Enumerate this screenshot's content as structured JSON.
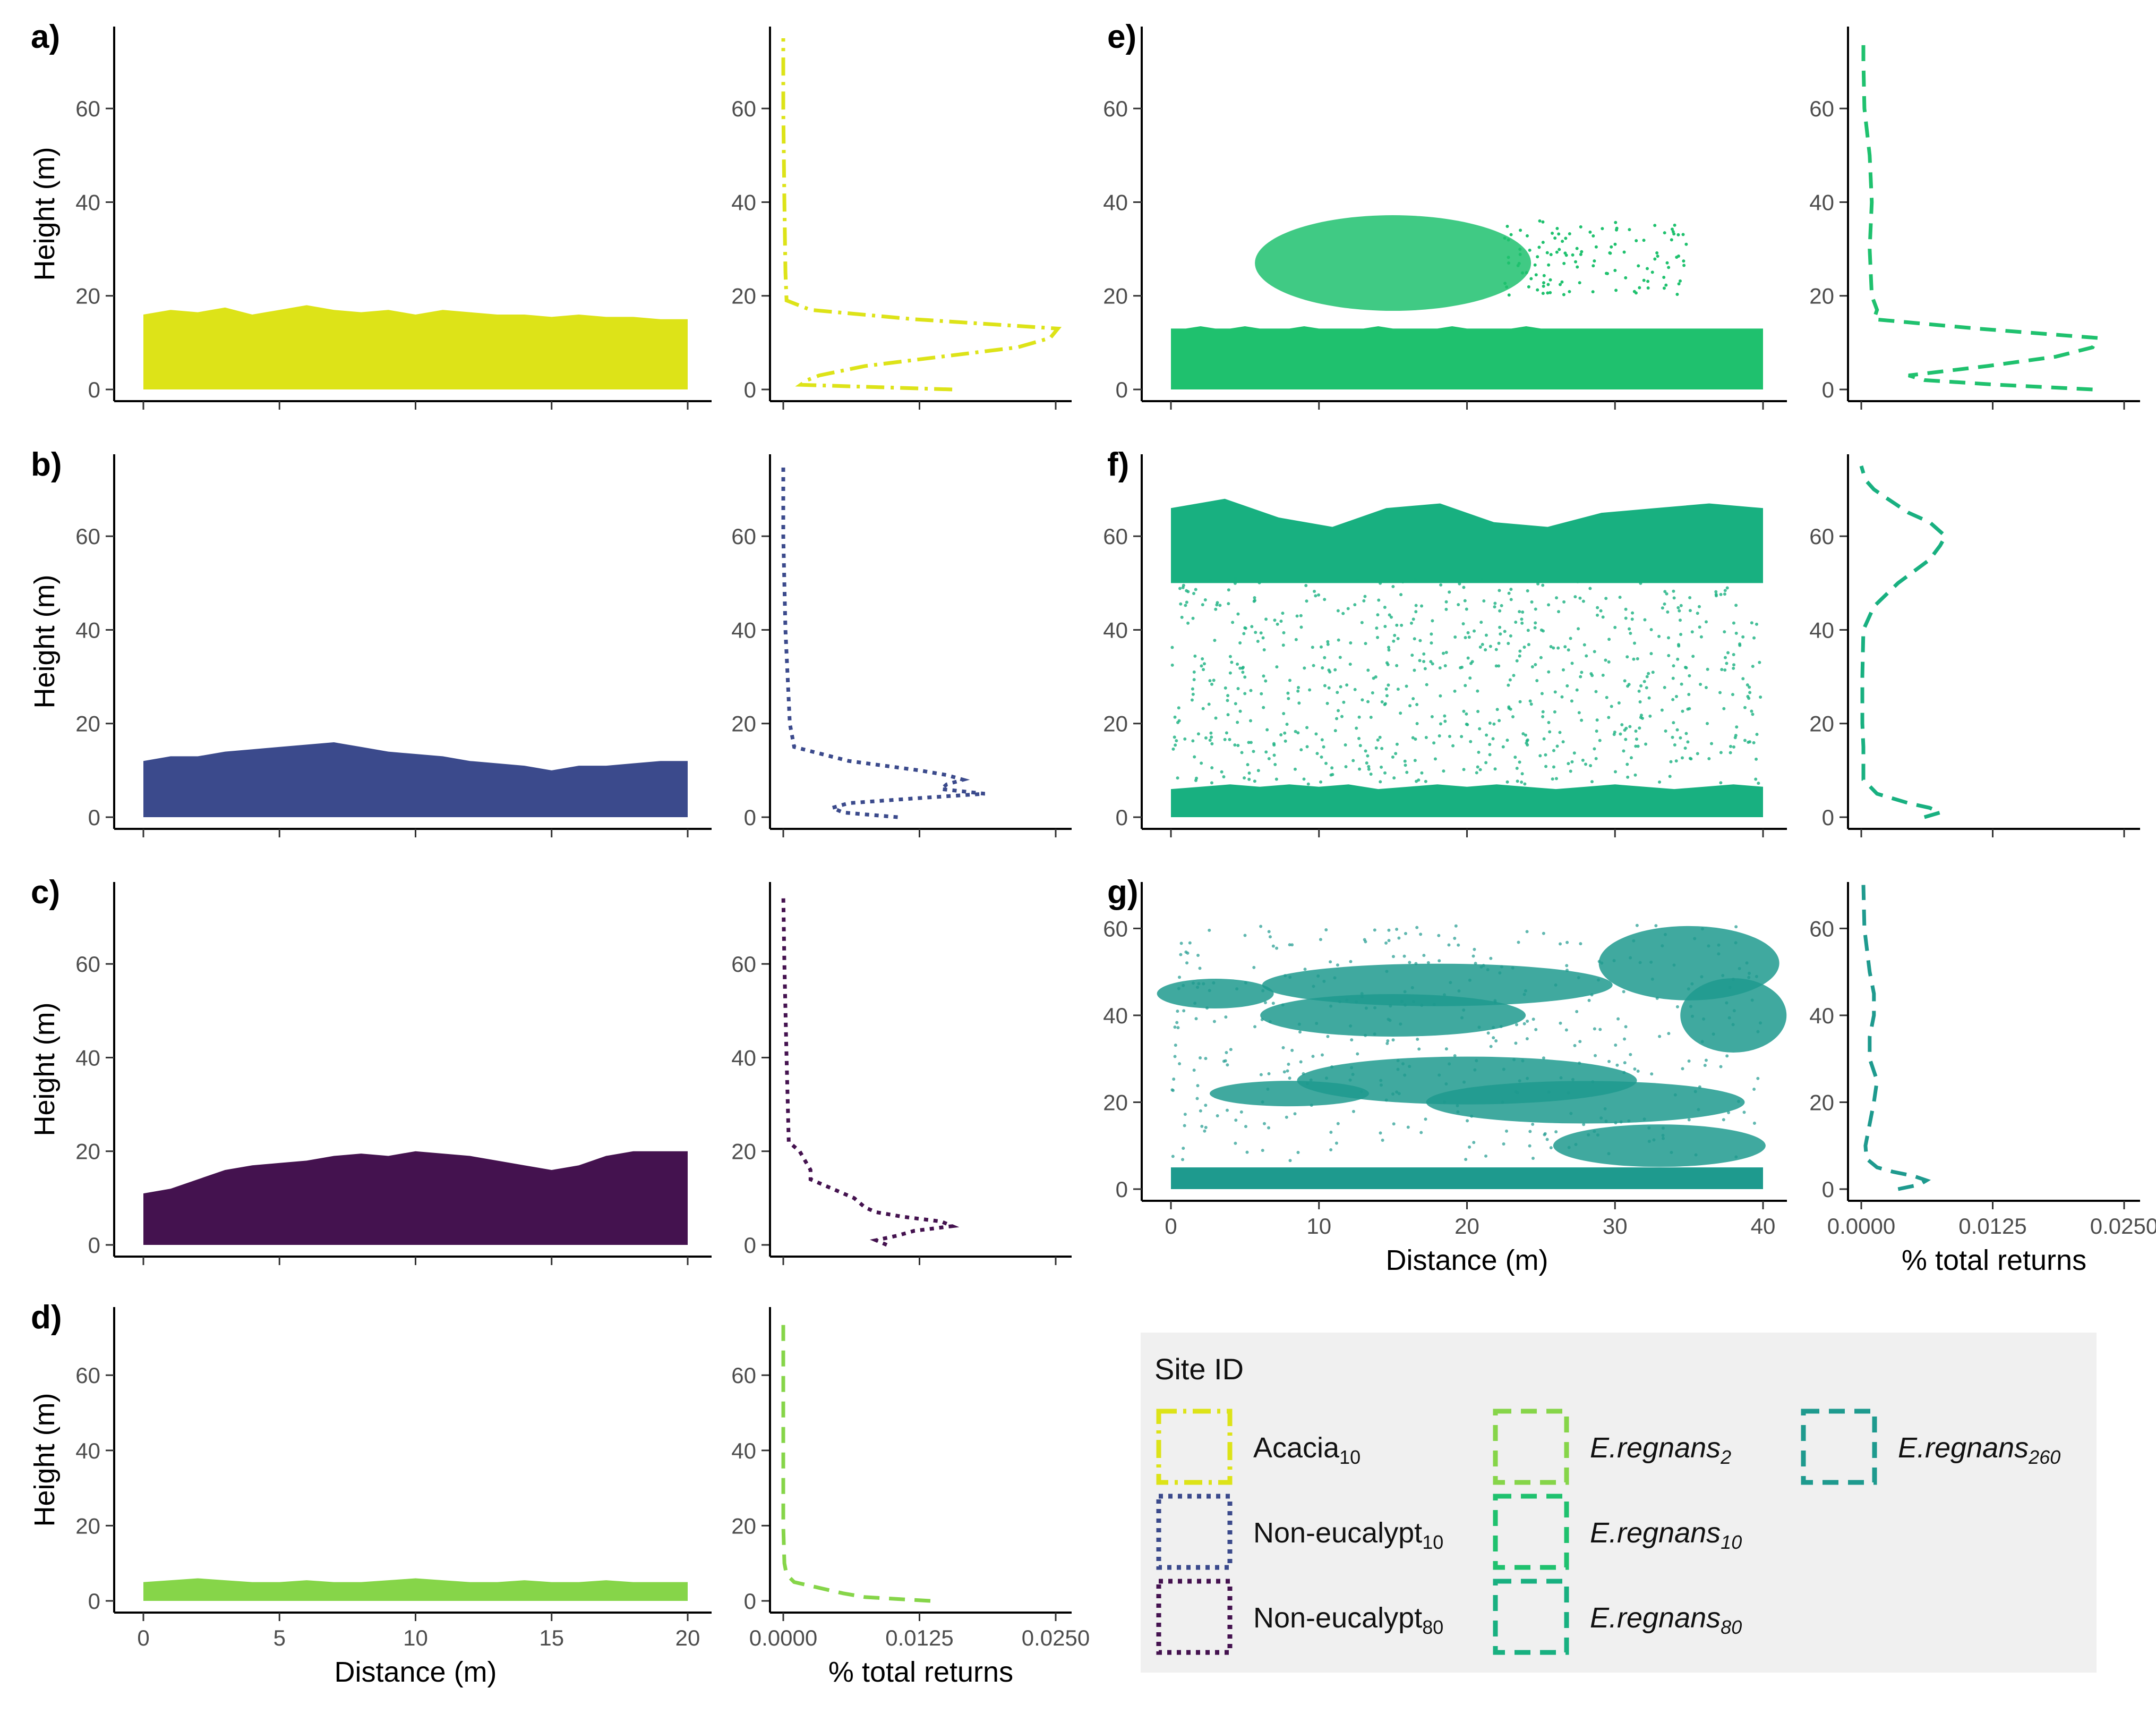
{
  "panel_labels": [
    "a)",
    "b)",
    "c)",
    "d)",
    "e)",
    "f)",
    "g)"
  ],
  "axis_labels": {
    "height": "Height (m)",
    "distance": "Distance (m)",
    "returns": "% total returns"
  },
  "legend": {
    "title": "Site ID",
    "items": [
      {
        "name": "Acacia",
        "sub": "10",
        "italic": false,
        "color": "#dde318",
        "dash": "dashdot"
      },
      {
        "name": "Non-eucalypt",
        "sub": "10",
        "italic": false,
        "color": "#3b4a8c",
        "dash": "dotted"
      },
      {
        "name": "Non-eucalypt",
        "sub": "80",
        "italic": false,
        "color": "#44124f",
        "dash": "dotted"
      },
      {
        "name": "E.regnans",
        "sub": "2",
        "italic": true,
        "color": "#86d549",
        "dash": "dashed"
      },
      {
        "name": "E.regnans",
        "sub": "10",
        "italic": true,
        "color": "#1fc16e",
        "dash": "dashed"
      },
      {
        "name": "E.regnans",
        "sub": "80",
        "italic": true,
        "color": "#18b080",
        "dash": "dashed"
      },
      {
        "name": "E.regnans",
        "sub": "260",
        "italic": true,
        "color": "#1e9a8e",
        "dash": "dashed"
      }
    ]
  },
  "chart_data": [
    {
      "id": "a",
      "type": "scatter",
      "site": "Acacia10",
      "color": "#dde318",
      "xlim": [
        0,
        20
      ],
      "ylim": [
        0,
        75
      ],
      "xticks": [
        "0",
        "5",
        "10",
        "15",
        "20"
      ],
      "yticks": [
        "0",
        "20",
        "40",
        "60"
      ],
      "canopy": {
        "base": 0,
        "top": [
          16,
          17,
          16.5,
          17.5,
          16,
          17,
          18,
          17,
          16.5,
          17,
          16,
          17,
          16.5,
          16,
          16,
          15.5,
          16,
          15.5,
          15.5,
          15,
          15
        ]
      },
      "profile": {
        "heights": [
          0,
          1,
          2,
          3,
          5,
          7,
          9,
          11,
          13,
          15,
          17,
          19,
          25,
          40,
          60,
          75
        ],
        "values": [
          0.0155,
          0.0016,
          0.0022,
          0.0033,
          0.0075,
          0.0145,
          0.0215,
          0.0245,
          0.0252,
          0.012,
          0.0025,
          0.0003,
          0.0002,
          0.0001,
          0.0,
          0.0
        ]
      }
    },
    {
      "id": "b",
      "type": "scatter",
      "site": "Non-eucalypt10",
      "color": "#3b4a8c",
      "xlim": [
        0,
        20
      ],
      "ylim": [
        0,
        75
      ],
      "xticks": [
        "0",
        "5",
        "10",
        "15",
        "20"
      ],
      "yticks": [
        "0",
        "20",
        "40",
        "60"
      ],
      "canopy": {
        "base": 0,
        "top": [
          12,
          13,
          13,
          14,
          14.5,
          15,
          15.5,
          16,
          15,
          14,
          13.5,
          13,
          12,
          11.5,
          11,
          10,
          11,
          11,
          11.5,
          12,
          12
        ]
      },
      "profile": {
        "heights": [
          0,
          1,
          2,
          3,
          4,
          5,
          6,
          7,
          8,
          9,
          10,
          12,
          15,
          20,
          40,
          60,
          75
        ],
        "values": [
          0.0105,
          0.0055,
          0.0045,
          0.006,
          0.012,
          0.0185,
          0.0145,
          0.015,
          0.0165,
          0.015,
          0.0125,
          0.006,
          0.001,
          0.0006,
          0.0002,
          0.0,
          0.0
        ]
      }
    },
    {
      "id": "c",
      "type": "scatter",
      "site": "Non-eucalypt80",
      "color": "#44124f",
      "xlim": [
        0,
        20
      ],
      "ylim": [
        0,
        75
      ],
      "xticks": [
        "0",
        "5",
        "10",
        "15",
        "20"
      ],
      "yticks": [
        "0",
        "20",
        "40",
        "60"
      ],
      "canopy": {
        "base": 0,
        "top": [
          11,
          12,
          14,
          16,
          17,
          17.5,
          18,
          19,
          19.5,
          19,
          20,
          19.5,
          19,
          18,
          17,
          16,
          17,
          19,
          20,
          20,
          20
        ]
      },
      "profile": {
        "heights": [
          0,
          1,
          2,
          3,
          4,
          5,
          6,
          7,
          8,
          10,
          12,
          14,
          16,
          18,
          20,
          22,
          40,
          60,
          75
        ],
        "values": [
          0.0095,
          0.0085,
          0.0105,
          0.012,
          0.0155,
          0.0145,
          0.011,
          0.0085,
          0.0075,
          0.0065,
          0.0045,
          0.0025,
          0.0025,
          0.002,
          0.0015,
          0.0005,
          0.0003,
          0.0001,
          0.0
        ]
      }
    },
    {
      "id": "d",
      "type": "scatter",
      "site": "E.regnans2",
      "color": "#86d549",
      "xlim": [
        0,
        20
      ],
      "ylim": [
        0,
        75
      ],
      "xticks": [
        "0",
        "5",
        "10",
        "15",
        "20"
      ],
      "yticks": [
        "0",
        "20",
        "40",
        "60"
      ],
      "canopy": {
        "base": 0,
        "top": [
          5,
          5.5,
          6,
          5.5,
          5,
          5,
          5.5,
          5,
          5,
          5.5,
          6,
          5.5,
          5,
          5,
          5.5,
          5,
          5,
          5.5,
          5,
          5,
          5
        ]
      },
      "profile": {
        "heights": [
          0,
          1,
          2,
          3,
          4,
          5,
          7,
          10,
          20,
          40,
          60,
          75
        ],
        "values": [
          0.0135,
          0.0075,
          0.0055,
          0.004,
          0.0025,
          0.001,
          0.0003,
          0.0001,
          0.0,
          0.0,
          0.0,
          0.0
        ]
      }
    },
    {
      "id": "e",
      "type": "scatter",
      "site": "E.regnans10",
      "color": "#1fc16e",
      "xlim": [
        0,
        40
      ],
      "ylim": [
        0,
        75
      ],
      "xticks": [
        "0",
        "10",
        "20",
        "30",
        "40"
      ],
      "yticks": [
        "0",
        "20",
        "40",
        "60"
      ],
      "canopy": {
        "base": 0,
        "top": [
          13,
          13,
          13.5,
          13,
          13,
          13.5,
          13,
          13,
          13,
          13.5,
          13,
          13,
          13,
          13,
          13.5,
          13,
          13,
          13,
          13,
          13.5,
          13,
          13,
          13,
          13,
          13.5,
          13,
          13,
          13,
          13,
          13,
          13,
          13,
          13,
          13,
          13,
          13,
          13,
          13,
          13,
          13,
          13
        ]
      },
      "profile": {
        "heights": [
          0,
          1,
          2,
          3,
          5,
          7,
          9,
          11,
          13,
          15,
          17,
          20,
          30,
          40,
          50,
          60,
          70,
          75
        ],
        "values": [
          0.022,
          0.013,
          0.006,
          0.0045,
          0.012,
          0.0185,
          0.022,
          0.0225,
          0.011,
          0.0012,
          0.0015,
          0.001,
          0.0008,
          0.001,
          0.0008,
          0.0003,
          0.0002,
          0.0002
        ]
      }
    },
    {
      "id": "f",
      "type": "scatter",
      "site": "E.regnans80",
      "color": "#18b080",
      "xlim": [
        0,
        40
      ],
      "ylim": [
        0,
        75
      ],
      "xticks": [
        "0",
        "10",
        "20",
        "30",
        "40"
      ],
      "yticks": [
        "0",
        "20",
        "40",
        "60"
      ],
      "canopy": {
        "base": 0,
        "top": [
          6,
          6.5,
          7,
          6.5,
          7,
          6.5,
          7,
          6,
          6.5,
          7,
          6.5,
          7,
          6.5,
          6,
          6.5,
          7,
          6.5,
          6,
          6.5,
          7,
          6.5
        ]
      },
      "profile": {
        "heights": [
          0,
          1,
          2,
          3,
          5,
          8,
          10,
          15,
          20,
          30,
          40,
          45,
          50,
          55,
          58,
          60,
          63,
          65,
          68,
          70,
          72,
          75
        ],
        "values": [
          0.006,
          0.0075,
          0.0065,
          0.0045,
          0.0015,
          0.0002,
          0.0002,
          0.0002,
          0.0001,
          0.0001,
          0.0002,
          0.0012,
          0.0035,
          0.0065,
          0.0075,
          0.008,
          0.0065,
          0.0045,
          0.0025,
          0.0012,
          0.0004,
          0.0
        ]
      }
    },
    {
      "id": "g",
      "type": "scatter",
      "site": "E.regnans260",
      "color": "#1e9a8e",
      "xlim": [
        0,
        40
      ],
      "ylim": [
        0,
        68
      ],
      "xticks": [
        "0",
        "10",
        "20",
        "30",
        "40"
      ],
      "yticks": [
        "0",
        "20",
        "40",
        "60"
      ],
      "canopy": {
        "base": 0,
        "top": [
          5,
          5,
          5,
          5,
          5,
          5,
          5,
          5,
          5,
          5,
          5,
          5,
          5,
          5,
          5,
          5,
          5,
          5,
          5,
          5,
          5
        ]
      },
      "profile": {
        "heights": [
          0,
          1,
          2,
          3,
          4,
          5,
          7,
          10,
          15,
          20,
          25,
          30,
          35,
          40,
          45,
          50,
          60,
          70
        ],
        "values": [
          0.0035,
          0.0055,
          0.0062,
          0.005,
          0.003,
          0.0015,
          0.0005,
          0.0004,
          0.0008,
          0.0012,
          0.0015,
          0.0008,
          0.0008,
          0.0012,
          0.0012,
          0.0008,
          0.0003,
          0.0002
        ]
      },
      "xlabel": "Distance (m)"
    }
  ],
  "returns_axis": {
    "xlim": [
      0,
      0.026
    ],
    "xticks": [
      "0.0000",
      "0.0125",
      "0.0250"
    ]
  }
}
